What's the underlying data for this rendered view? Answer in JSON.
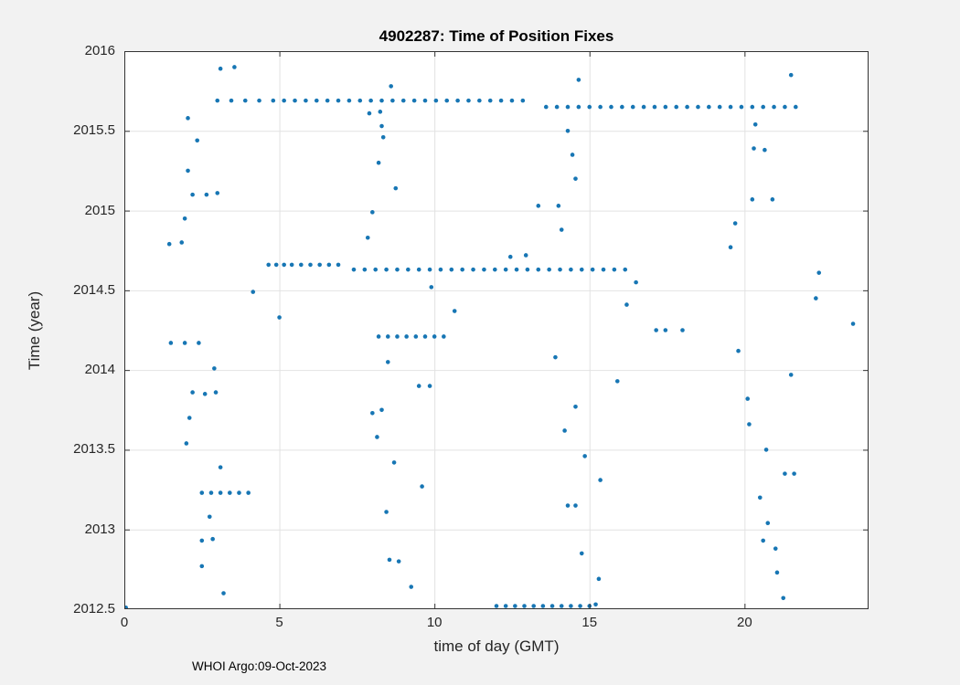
{
  "figure": {
    "footer": "WHOI Argo:09-Oct-2023"
  },
  "colors": {
    "figure_background": "#f2f2f2",
    "plot_background": "#ffffff",
    "grid": "#e2e2e2",
    "axis": "#333333",
    "marker": "#1776b4",
    "title": "#000000"
  },
  "chart_data": {
    "type": "scatter",
    "title": "4902287: Time of Position Fixes",
    "xlabel": "time of day (GMT)",
    "ylabel": "Time (year)",
    "xlim": [
      0,
      24
    ],
    "ylim": [
      2012.5,
      2016
    ],
    "xticks": [
      0,
      5,
      10,
      15,
      20
    ],
    "yticks": [
      2012.5,
      2013,
      2013.5,
      2014,
      2014.5,
      2015,
      2015.5,
      2016
    ],
    "grid": true,
    "legend": null,
    "marker_color": "#1776b4",
    "marker_size": 4.6,
    "points": [
      [
        3.0,
        2015.69
      ],
      [
        3.45,
        2015.69
      ],
      [
        3.9,
        2015.69
      ],
      [
        4.35,
        2015.69
      ],
      [
        4.8,
        2015.69
      ],
      [
        5.15,
        2015.69
      ],
      [
        5.5,
        2015.69
      ],
      [
        5.85,
        2015.69
      ],
      [
        6.2,
        2015.69
      ],
      [
        6.55,
        2015.69
      ],
      [
        6.9,
        2015.69
      ],
      [
        7.25,
        2015.69
      ],
      [
        7.6,
        2015.69
      ],
      [
        7.95,
        2015.69
      ],
      [
        8.3,
        2015.69
      ],
      [
        8.65,
        2015.69
      ],
      [
        9.0,
        2015.69
      ],
      [
        9.35,
        2015.69
      ],
      [
        9.7,
        2015.69
      ],
      [
        10.05,
        2015.69
      ],
      [
        10.4,
        2015.69
      ],
      [
        10.75,
        2015.69
      ],
      [
        11.1,
        2015.69
      ],
      [
        11.45,
        2015.69
      ],
      [
        11.8,
        2015.69
      ],
      [
        12.15,
        2015.69
      ],
      [
        12.5,
        2015.69
      ],
      [
        12.85,
        2015.69
      ],
      [
        13.6,
        2015.65
      ],
      [
        13.95,
        2015.65
      ],
      [
        14.3,
        2015.65
      ],
      [
        14.65,
        2015.65
      ],
      [
        15.0,
        2015.65
      ],
      [
        15.35,
        2015.65
      ],
      [
        15.7,
        2015.65
      ],
      [
        16.05,
        2015.65
      ],
      [
        16.4,
        2015.65
      ],
      [
        16.75,
        2015.65
      ],
      [
        17.1,
        2015.65
      ],
      [
        17.45,
        2015.65
      ],
      [
        17.8,
        2015.65
      ],
      [
        18.15,
        2015.65
      ],
      [
        18.5,
        2015.65
      ],
      [
        18.85,
        2015.65
      ],
      [
        19.2,
        2015.65
      ],
      [
        19.55,
        2015.65
      ],
      [
        19.9,
        2015.65
      ],
      [
        20.25,
        2015.65
      ],
      [
        20.6,
        2015.65
      ],
      [
        20.95,
        2015.65
      ],
      [
        21.3,
        2015.65
      ],
      [
        21.65,
        2015.65
      ],
      [
        4.65,
        2014.66
      ],
      [
        4.9,
        2014.66
      ],
      [
        5.15,
        2014.66
      ],
      [
        5.4,
        2014.66
      ],
      [
        5.7,
        2014.66
      ],
      [
        6.0,
        2014.66
      ],
      [
        6.3,
        2014.66
      ],
      [
        6.6,
        2014.66
      ],
      [
        6.9,
        2014.66
      ],
      [
        7.4,
        2014.63
      ],
      [
        7.75,
        2014.63
      ],
      [
        8.1,
        2014.63
      ],
      [
        8.45,
        2014.63
      ],
      [
        8.8,
        2014.63
      ],
      [
        9.15,
        2014.63
      ],
      [
        9.5,
        2014.63
      ],
      [
        9.85,
        2014.63
      ],
      [
        10.2,
        2014.63
      ],
      [
        10.55,
        2014.63
      ],
      [
        10.9,
        2014.63
      ],
      [
        11.25,
        2014.63
      ],
      [
        11.6,
        2014.63
      ],
      [
        11.95,
        2014.63
      ],
      [
        12.3,
        2014.63
      ],
      [
        12.65,
        2014.63
      ],
      [
        13.0,
        2014.63
      ],
      [
        13.35,
        2014.63
      ],
      [
        13.7,
        2014.63
      ],
      [
        14.05,
        2014.63
      ],
      [
        14.4,
        2014.63
      ],
      [
        14.75,
        2014.63
      ],
      [
        15.1,
        2014.63
      ],
      [
        15.45,
        2014.63
      ],
      [
        15.8,
        2014.63
      ],
      [
        16.15,
        2014.63
      ],
      [
        12.45,
        2014.71
      ],
      [
        12.95,
        2014.72
      ],
      [
        12.0,
        2012.52
      ],
      [
        12.3,
        2012.52
      ],
      [
        12.6,
        2012.52
      ],
      [
        12.9,
        2012.52
      ],
      [
        13.2,
        2012.52
      ],
      [
        13.5,
        2012.52
      ],
      [
        13.8,
        2012.52
      ],
      [
        14.1,
        2012.52
      ],
      [
        14.4,
        2012.52
      ],
      [
        14.7,
        2012.52
      ],
      [
        15.0,
        2012.52
      ],
      [
        15.2,
        2012.53
      ],
      [
        0.05,
        2012.51
      ],
      [
        8.2,
        2014.21
      ],
      [
        8.5,
        2014.21
      ],
      [
        8.8,
        2014.21
      ],
      [
        9.1,
        2014.21
      ],
      [
        9.4,
        2014.21
      ],
      [
        9.7,
        2014.21
      ],
      [
        10.0,
        2014.21
      ],
      [
        10.3,
        2014.21
      ],
      [
        2.5,
        2013.23
      ],
      [
        2.8,
        2013.23
      ],
      [
        3.1,
        2013.23
      ],
      [
        3.4,
        2013.23
      ],
      [
        3.7,
        2013.23
      ],
      [
        4.0,
        2013.23
      ],
      [
        1.45,
        2014.79
      ],
      [
        1.85,
        2014.8
      ],
      [
        1.5,
        2014.17
      ],
      [
        1.95,
        2014.17
      ],
      [
        2.4,
        2014.17
      ],
      [
        2.05,
        2015.58
      ],
      [
        2.35,
        2015.44
      ],
      [
        2.05,
        2015.25
      ],
      [
        2.2,
        2015.1
      ],
      [
        2.65,
        2015.1
      ],
      [
        3.0,
        2015.11
      ],
      [
        1.95,
        2014.95
      ],
      [
        2.1,
        2013.7
      ],
      [
        2.0,
        2013.54
      ],
      [
        2.2,
        2013.86
      ],
      [
        2.6,
        2013.85
      ],
      [
        2.95,
        2013.86
      ],
      [
        2.9,
        2014.01
      ],
      [
        2.75,
        2013.08
      ],
      [
        2.5,
        2012.93
      ],
      [
        2.85,
        2012.94
      ],
      [
        2.5,
        2012.77
      ],
      [
        3.2,
        2012.6
      ],
      [
        3.1,
        2013.39
      ],
      [
        4.15,
        2014.49
      ],
      [
        5.0,
        2014.33
      ],
      [
        3.1,
        2015.89
      ],
      [
        3.55,
        2015.9
      ],
      [
        7.9,
        2015.61
      ],
      [
        8.25,
        2015.62
      ],
      [
        8.6,
        2015.78
      ],
      [
        8.3,
        2015.53
      ],
      [
        8.35,
        2015.46
      ],
      [
        8.2,
        2015.3
      ],
      [
        8.75,
        2015.14
      ],
      [
        8.0,
        2014.99
      ],
      [
        7.85,
        2014.83
      ],
      [
        8.5,
        2014.05
      ],
      [
        8.0,
        2013.73
      ],
      [
        8.3,
        2013.75
      ],
      [
        8.15,
        2013.58
      ],
      [
        8.7,
        2013.42
      ],
      [
        8.45,
        2013.11
      ],
      [
        8.55,
        2012.81
      ],
      [
        8.85,
        2012.8
      ],
      [
        9.25,
        2012.64
      ],
      [
        9.6,
        2013.27
      ],
      [
        9.5,
        2013.9
      ],
      [
        9.85,
        2013.9
      ],
      [
        9.9,
        2014.52
      ],
      [
        10.65,
        2014.37
      ],
      [
        13.35,
        2015.03
      ],
      [
        14.65,
        2015.82
      ],
      [
        14.3,
        2015.5
      ],
      [
        14.45,
        2015.35
      ],
      [
        14.55,
        2015.2
      ],
      [
        14.0,
        2015.03
      ],
      [
        14.1,
        2014.88
      ],
      [
        13.9,
        2014.08
      ],
      [
        14.55,
        2013.77
      ],
      [
        14.2,
        2013.62
      ],
      [
        14.85,
        2013.46
      ],
      [
        14.3,
        2013.15
      ],
      [
        14.55,
        2013.15
      ],
      [
        14.75,
        2012.85
      ],
      [
        15.3,
        2012.69
      ],
      [
        15.35,
        2013.31
      ],
      [
        15.9,
        2013.93
      ],
      [
        16.2,
        2014.41
      ],
      [
        16.5,
        2014.55
      ],
      [
        17.15,
        2014.25
      ],
      [
        17.45,
        2014.25
      ],
      [
        18.0,
        2014.25
      ],
      [
        19.55,
        2014.77
      ],
      [
        19.7,
        2014.92
      ],
      [
        19.8,
        2014.12
      ],
      [
        20.1,
        2013.82
      ],
      [
        20.15,
        2013.66
      ],
      [
        20.25,
        2015.07
      ],
      [
        20.9,
        2015.07
      ],
      [
        20.3,
        2015.39
      ],
      [
        20.65,
        2015.38
      ],
      [
        20.35,
        2015.54
      ],
      [
        20.7,
        2013.5
      ],
      [
        20.5,
        2013.2
      ],
      [
        20.6,
        2012.93
      ],
      [
        20.75,
        2013.04
      ],
      [
        21.0,
        2012.88
      ],
      [
        21.05,
        2012.73
      ],
      [
        21.25,
        2012.57
      ],
      [
        21.3,
        2013.35
      ],
      [
        21.6,
        2013.35
      ],
      [
        21.5,
        2013.97
      ],
      [
        21.5,
        2015.85
      ],
      [
        22.4,
        2014.61
      ],
      [
        22.3,
        2014.45
      ],
      [
        23.5,
        2014.29
      ]
    ]
  }
}
